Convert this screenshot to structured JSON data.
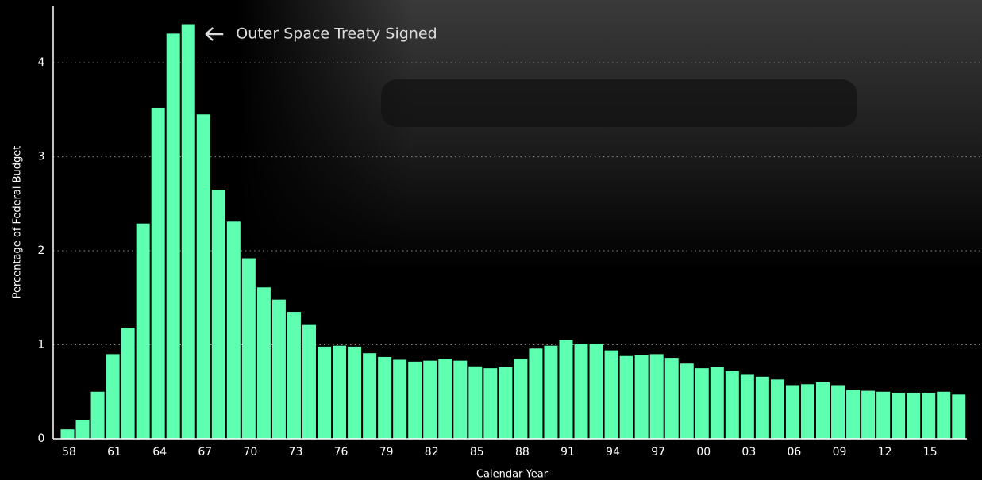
{
  "chart_data": {
    "type": "bar",
    "annotation": "Outer Space Treaty Signed",
    "y_label": "Percentage of Federal Budget",
    "x_label": "Calendar Year",
    "categories": [
      "58",
      null,
      null,
      "61",
      null,
      null,
      "64",
      null,
      null,
      "67",
      null,
      null,
      "70",
      null,
      null,
      "73",
      null,
      null,
      "76",
      null,
      null,
      "79",
      null,
      null,
      "82",
      null,
      null,
      "85",
      null,
      null,
      "88",
      null,
      null,
      "91",
      null,
      null,
      "94",
      null,
      null,
      "97",
      null,
      null,
      "00",
      null,
      null,
      "03",
      null,
      null,
      "06",
      null,
      null,
      "09",
      null,
      null,
      "12",
      null,
      null,
      "15",
      null,
      null
    ],
    "values": [
      0.1,
      0.2,
      0.5,
      0.9,
      1.18,
      2.29,
      3.52,
      4.31,
      4.41,
      3.45,
      2.65,
      2.31,
      1.92,
      1.61,
      1.48,
      1.35,
      1.21,
      0.98,
      0.99,
      0.98,
      0.91,
      0.87,
      0.84,
      0.82,
      0.83,
      0.85,
      0.83,
      0.77,
      0.75,
      0.76,
      0.85,
      0.96,
      0.99,
      1.05,
      1.01,
      1.01,
      0.94,
      0.88,
      0.89,
      0.9,
      0.86,
      0.8,
      0.75,
      0.76,
      0.72,
      0.68,
      0.66,
      0.63,
      0.57,
      0.58,
      0.6,
      0.57,
      0.52,
      0.51,
      0.5,
      0.49,
      0.49,
      0.49,
      0.5,
      0.47
    ],
    "color": "#5effb0",
    "ylim": [
      0,
      4.6
    ],
    "yticks": [
      0,
      1,
      2,
      3,
      4
    ],
    "grid": true
  }
}
